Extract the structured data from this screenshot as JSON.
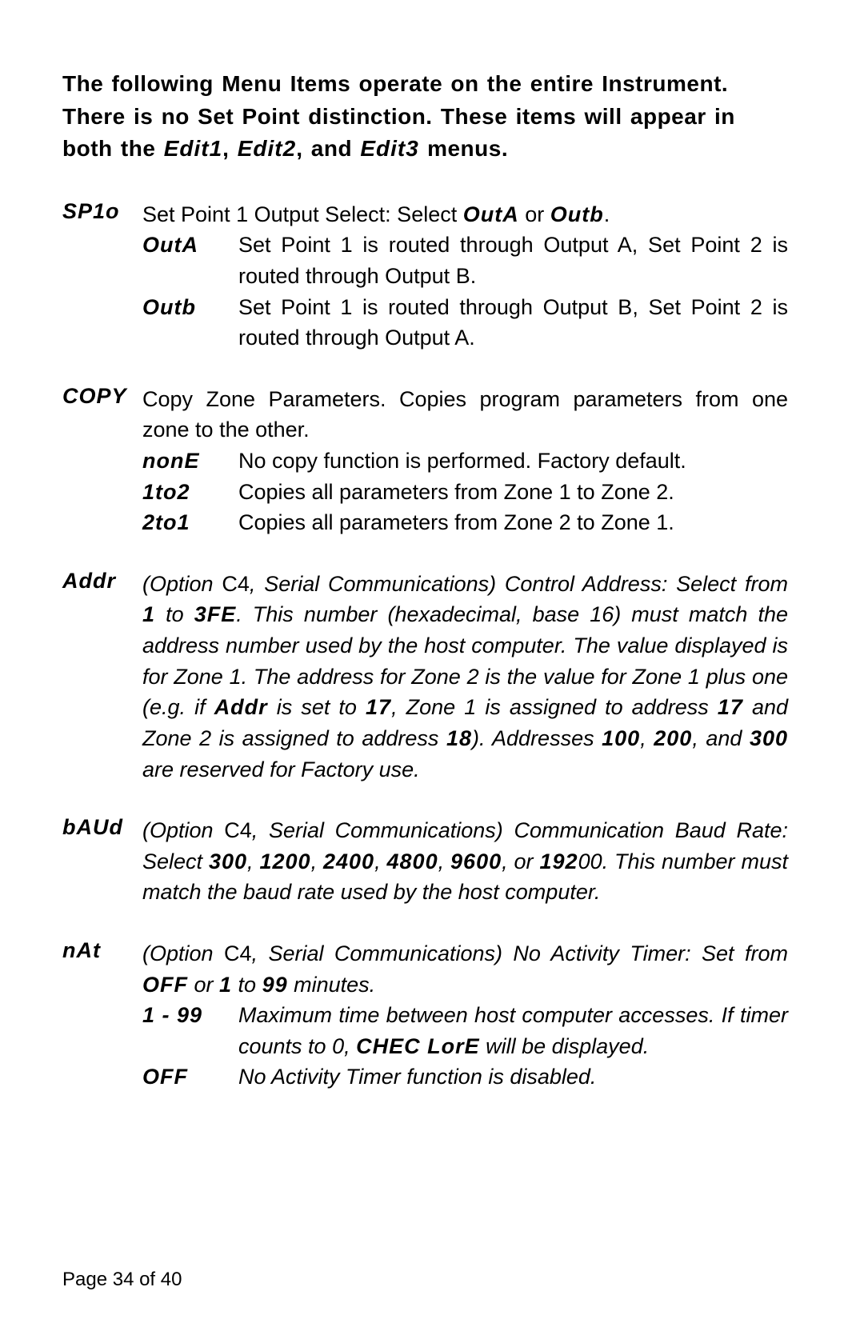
{
  "intro": {
    "line1": "The following Menu Items operate on the entire Instrument.",
    "line2": "There is no Set Point distinction.  These items will appear in",
    "line3_pre": "both the ",
    "edit1": "Edit1",
    "sep1": ", ",
    "edit2": "Edit2",
    "sep2": ", and ",
    "edit3": "Edit3",
    "line3_post": " menus."
  },
  "sp1o": {
    "label": "SP1o",
    "desc_pre": "Set Point 1 Output Select: Select ",
    "outA": "OutA",
    "or": " or ",
    "outb": "Outb",
    "desc_post": ".",
    "outA_label": "OutA",
    "outA_body": "Set Point 1 is routed through Output A, Set Point 2 is routed through Output B.",
    "outb_label": "Outb",
    "outb_body": "Set Point 1 is routed through Output B, Set Point 2 is routed through Output A."
  },
  "copy": {
    "label": "COPY",
    "desc": "Copy Zone Parameters.  Copies program parameters from one zone to the other.",
    "nonE_label": "nonE",
    "nonE_body": "No copy function is performed.  Factory default.",
    "to2_label": "1to2",
    "to2_body": "Copies all parameters from Zone 1 to Zone 2.",
    "to1_label": "2to1",
    "to1_body": "Copies all parameters from Zone 2 to Zone 1."
  },
  "addr": {
    "label": "Addr",
    "p1": "(Option ",
    "c4": "C4",
    "p2": ", Serial Communications) Control Address:  Select from ",
    "one": "1",
    "p3": " to ",
    "fe": "3FE",
    "p4": ".  This number (hexadecimal, base 16) must match the address number used by the host computer.  The value displayed is for Zone 1.  The address for Zone 2 is the value for Zone 1 plus one (e.g. if ",
    "addr2": "Addr",
    "p5": " is set to ",
    "v17": "17",
    "p6": ", Zone 1 is assigned to address ",
    "v17b": "17",
    "p7": " and Zone 2 is assigned to address ",
    "v18": "18",
    "p8": ").   Addresses ",
    "v100": "100",
    "p9": ", ",
    "v200": "200",
    "p10": ", and ",
    "v300": "300",
    "p11": "  are reserved for Factory use."
  },
  "baud": {
    "label": "bAUd",
    "p1": "(Option ",
    "c4": "C4",
    "p2": ", Serial Communications) Communication Baud Rate:  Select ",
    "v300": "300",
    "s1": ", ",
    "v1200": "1200",
    "s2": ", ",
    "v2400": "2400",
    "s3": ", ",
    "v4800": "4800",
    "s4": ", ",
    "v9600": "9600",
    "s5": ", or ",
    "v192": "192",
    "p3": "00.  This number must match the baud rate used by the host computer."
  },
  "nat": {
    "label": "nAt",
    "p1": "(Option ",
    "c4": "C4",
    "p2": ", Serial Communications) No Activity Timer:  Set from ",
    "off": "OFF",
    "p3": " or ",
    "one": "1",
    "p4": " to ",
    "v99": "99",
    "p5": " minutes.",
    "r_label": "1 - 99",
    "r_body1": "Maximum time between host computer accesses.  If timer counts to 0, ",
    "chec": "CHEC LorE",
    "r_body2": " will be displayed.",
    "off_label": "OFF",
    "off_body": "No Activity Timer function is disabled."
  },
  "page": "Page 34 of 40"
}
